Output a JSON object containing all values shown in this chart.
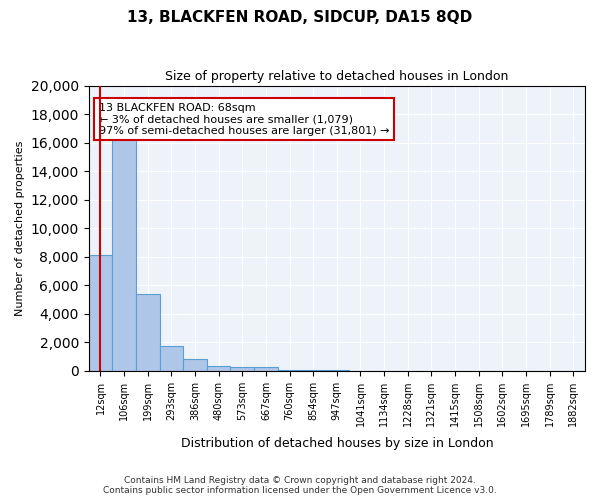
{
  "title": "13, BLACKFEN ROAD, SIDCUP, DA15 8QD",
  "subtitle": "Size of property relative to detached houses in London",
  "xlabel": "Distribution of detached houses by size in London",
  "ylabel": "Number of detached properties",
  "bar_color": "#aec6e8",
  "bar_edge_color": "#5a9fd4",
  "background_color": "#eef3fb",
  "grid_color": "#ffffff",
  "categories": [
    "12sqm",
    "106sqm",
    "199sqm",
    "293sqm",
    "386sqm",
    "480sqm",
    "573sqm",
    "667sqm",
    "760sqm",
    "854sqm",
    "947sqm",
    "1041sqm",
    "1134sqm",
    "1228sqm",
    "1321sqm",
    "1415sqm",
    "1508sqm",
    "1602sqm",
    "1695sqm",
    "1789sqm",
    "1882sqm"
  ],
  "values": [
    8100,
    16600,
    5400,
    1750,
    800,
    350,
    275,
    225,
    50,
    30,
    15,
    10,
    8,
    5,
    3,
    3,
    2,
    2,
    1,
    1,
    0
  ],
  "ylim": [
    0,
    20000
  ],
  "yticks": [
    0,
    2000,
    4000,
    6000,
    8000,
    10000,
    12000,
    14000,
    16000,
    18000,
    20000
  ],
  "property_line_x": 0,
  "annotation_text": "13 BLACKFEN ROAD: 68sqm\n← 3% of detached houses are smaller (1,079)\n97% of semi-detached houses are larger (31,801) →",
  "annotation_box_color": "#ffffff",
  "annotation_box_edge_color": "#cc0000",
  "red_line_color": "#cc0000",
  "footer_line1": "Contains HM Land Registry data © Crown copyright and database right 2024.",
  "footer_line2": "Contains public sector information licensed under the Open Government Licence v3.0."
}
